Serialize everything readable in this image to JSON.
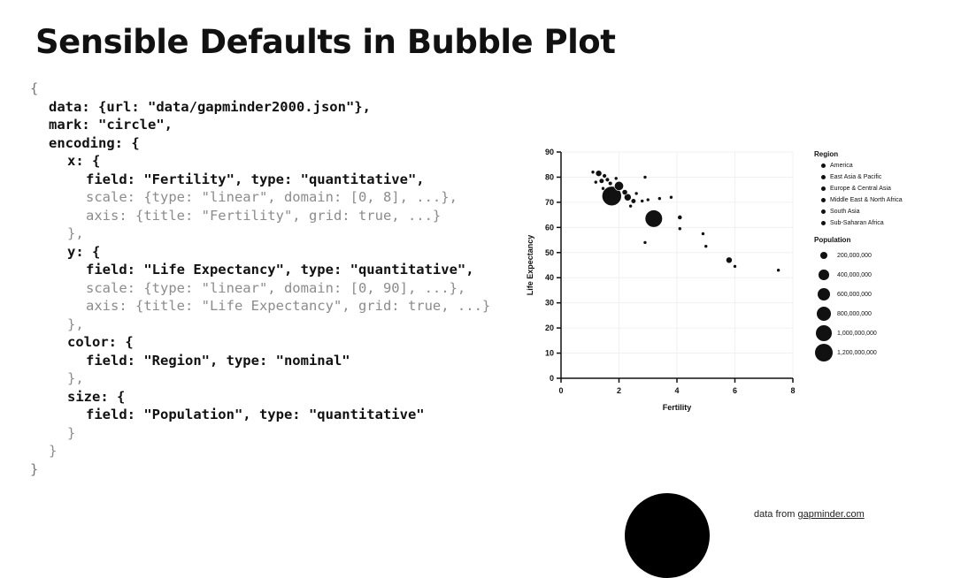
{
  "slide": {
    "title": "Sensible Defaults in Bubble Plot"
  },
  "code_lines": [
    {
      "text": "{",
      "indent": 0,
      "style": "brace"
    },
    {
      "text": "data: {url: \"data/gapminder2000.json\"},",
      "indent": 1,
      "style": "dark"
    },
    {
      "text": "mark: \"circle\",",
      "indent": 1,
      "style": "dark"
    },
    {
      "text": "encoding: {",
      "indent": 1,
      "style": "dark"
    },
    {
      "text": "x: {",
      "indent": 2,
      "style": "dark"
    },
    {
      "text": "field: \"Fertility\", type: \"quantitative\",",
      "indent": 3,
      "style": "dark"
    },
    {
      "text": "scale: {type: \"linear\", domain: [0, 8], ...},",
      "indent": 3,
      "style": "dim"
    },
    {
      "text": "axis: {title: \"Fertility\", grid: true, ...}",
      "indent": 3,
      "style": "dim"
    },
    {
      "text": "},",
      "indent": 2,
      "style": "dim"
    },
    {
      "text": "y: {",
      "indent": 2,
      "style": "dark"
    },
    {
      "text": "field: \"Life Expectancy\", type: \"quantitative\",",
      "indent": 3,
      "style": "dark"
    },
    {
      "text": "scale: {type: \"linear\", domain: [0, 90], ...},",
      "indent": 3,
      "style": "dim"
    },
    {
      "text": "axis: {title: \"Life Expectancy\", grid: true, ...}",
      "indent": 3,
      "style": "dim"
    },
    {
      "text": "},",
      "indent": 2,
      "style": "dim"
    },
    {
      "text": "color: {",
      "indent": 2,
      "style": "dark"
    },
    {
      "text": "field: \"Region\", type: \"nominal\"",
      "indent": 3,
      "style": "dark"
    },
    {
      "text": "},",
      "indent": 2,
      "style": "dim"
    },
    {
      "text": "size: {",
      "indent": 2,
      "style": "dark"
    },
    {
      "text": "field: \"Population\", type: \"quantitative\"",
      "indent": 3,
      "style": "dark"
    },
    {
      "text": "}",
      "indent": 2,
      "style": "dim"
    },
    {
      "text": "}",
      "indent": 1,
      "style": "dim"
    },
    {
      "text": "}",
      "indent": 0,
      "style": "brace"
    }
  ],
  "legend": {
    "region_title": "Region",
    "regions": [
      "America",
      "East Asia & Pacific",
      "Europe & Central Asia",
      "Middle East & North Africa",
      "South Asia",
      "Sub-Saharan Africa"
    ],
    "population_title": "Population",
    "population_labels": [
      "200,000,000",
      "400,000,000",
      "600,000,000",
      "800,000,000",
      "1,000,000,000",
      "1,200,000,000"
    ],
    "population_values": [
      200000000,
      400000000,
      600000000,
      800000000,
      1000000000,
      1200000000
    ]
  },
  "chart_data": {
    "type": "scatter",
    "xlabel": "Fertility",
    "ylabel": "Life Expectancy",
    "xlim": [
      0,
      8
    ],
    "ylim": [
      0,
      90
    ],
    "xticks": [
      0,
      2,
      4,
      6,
      8
    ],
    "yticks": [
      0,
      10,
      20,
      30,
      40,
      50,
      60,
      70,
      80,
      90
    ],
    "grid": true,
    "legend_position": "right",
    "points": [
      {
        "x": 1.75,
        "y": 72.5,
        "pop": 1260000000
      },
      {
        "x": 3.2,
        "y": 63.5,
        "pop": 1000000000
      },
      {
        "x": 1.3,
        "y": 81.5,
        "pop": 127000000
      },
      {
        "x": 1.4,
        "y": 78.5,
        "pop": 82000000
      },
      {
        "x": 1.5,
        "y": 80.5,
        "pop": 60000000
      },
      {
        "x": 1.6,
        "y": 79.0,
        "pop": 59000000
      },
      {
        "x": 1.7,
        "y": 77.5,
        "pop": 57000000
      },
      {
        "x": 1.2,
        "y": 78.0,
        "pop": 40000000
      },
      {
        "x": 1.9,
        "y": 79.5,
        "pop": 30000000
      },
      {
        "x": 2.0,
        "y": 76.5,
        "pop": 280000000
      },
      {
        "x": 2.2,
        "y": 74.0,
        "pop": 100000000
      },
      {
        "x": 2.3,
        "y": 72.0,
        "pop": 170000000
      },
      {
        "x": 2.5,
        "y": 70.5,
        "pop": 80000000
      },
      {
        "x": 2.6,
        "y": 73.5,
        "pop": 40000000
      },
      {
        "x": 2.8,
        "y": 70.5,
        "pop": 30000000
      },
      {
        "x": 3.0,
        "y": 71.0,
        "pop": 25000000
      },
      {
        "x": 3.4,
        "y": 71.5,
        "pop": 20000000
      },
      {
        "x": 3.8,
        "y": 72.0,
        "pop": 15000000
      },
      {
        "x": 2.4,
        "y": 68.5,
        "pop": 20000000
      },
      {
        "x": 1.1,
        "y": 82.0,
        "pop": 10000000
      },
      {
        "x": 1.45,
        "y": 75.5,
        "pop": 40000000
      },
      {
        "x": 2.9,
        "y": 80.0,
        "pop": 8000000
      },
      {
        "x": 4.1,
        "y": 64.0,
        "pop": 70000000
      },
      {
        "x": 4.1,
        "y": 59.5,
        "pop": 15000000
      },
      {
        "x": 2.9,
        "y": 54.0,
        "pop": 20000000
      },
      {
        "x": 4.9,
        "y": 57.5,
        "pop": 20000000
      },
      {
        "x": 5.0,
        "y": 52.5,
        "pop": 15000000
      },
      {
        "x": 5.8,
        "y": 47.0,
        "pop": 130000000
      },
      {
        "x": 6.0,
        "y": 44.5,
        "pop": 15000000
      },
      {
        "x": 7.5,
        "y": 43.0,
        "pop": 12000000
      }
    ]
  },
  "credit": {
    "prefix": "data from",
    "link_text": "gapminder.com"
  }
}
